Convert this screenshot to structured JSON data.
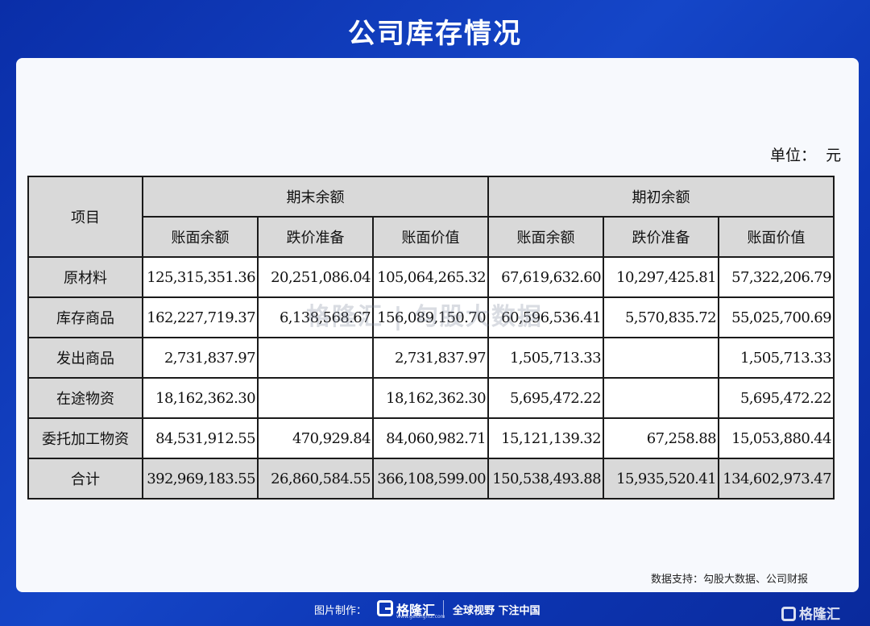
{
  "title": "公司库存情况",
  "unit_label": "单位：  元",
  "table": {
    "header_item": "项目",
    "group_end": "期末余额",
    "group_begin": "期初余额",
    "sub_headers": [
      "账面余额",
      "跌价准备",
      "账面价值",
      "账面余额",
      "跌价准备",
      "账面价值"
    ],
    "rows": [
      {
        "label": "原材料",
        "values": [
          "125,315,351.36",
          "20,251,086.04",
          "105,064,265.32",
          "67,619,632.60",
          "10,297,425.81",
          "57,322,206.79"
        ]
      },
      {
        "label": "库存商品",
        "values": [
          "162,227,719.37",
          "6,138,568.67",
          "156,089,150.70",
          "60,596,536.41",
          "5,570,835.72",
          "55,025,700.69"
        ]
      },
      {
        "label": "发出商品",
        "values": [
          "2,731,837.97",
          "",
          "2,731,837.97",
          "1,505,713.33",
          "",
          "1,505,713.33"
        ]
      },
      {
        "label": "在途物资",
        "values": [
          "18,162,362.30",
          "",
          "18,162,362.30",
          "5,695,472.22",
          "",
          "5,695,472.22"
        ]
      },
      {
        "label": "委托加工物资",
        "values": [
          "84,531,912.55",
          "470,929.84",
          "84,060,982.71",
          "15,121,139.32",
          "67,258.88",
          "15,053,880.44"
        ]
      }
    ],
    "total": {
      "label": "合计",
      "values": [
        "392,969,183.55",
        "26,860,584.55",
        "366,108,599.00",
        "150,538,493.88",
        "15,935,520.41",
        "134,602,973.47"
      ]
    }
  },
  "watermark": "格隆汇 | 勾股大数据",
  "source": "数据支持：勾股大数据、公司财报",
  "footer": {
    "credit": "图片制作：",
    "logo_text": "格隆汇",
    "logo_url": "www.gelonghui.com",
    "slogan": "全球视野 下注中国"
  },
  "corner_logo": "格隆汇"
}
